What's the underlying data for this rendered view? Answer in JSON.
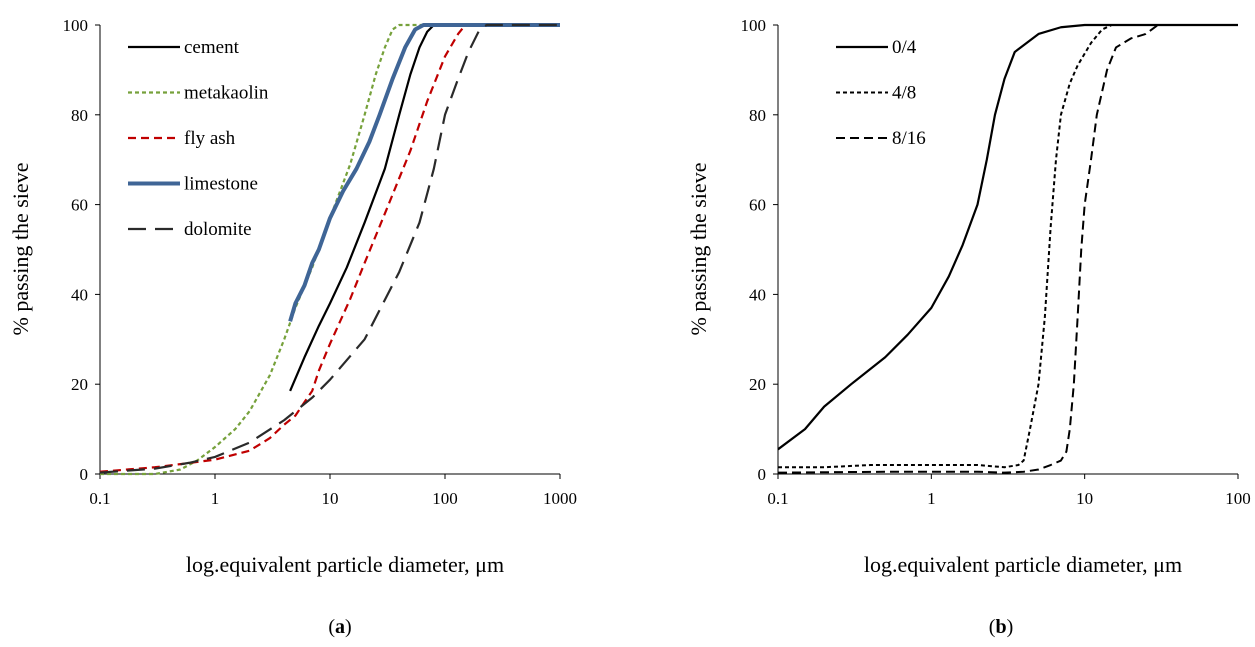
{
  "chart_data": [
    {
      "type": "line",
      "x_scale": "log",
      "xlabel": "log.equivalent particle diameter, μm",
      "ylabel": "% passing the sieve",
      "xlim": [
        0.1,
        1000
      ],
      "ylim": [
        0,
        100
      ],
      "x_ticks": [
        "0.1",
        "1",
        "10",
        "100",
        "1000"
      ],
      "y_ticks": [
        "0",
        "20",
        "40",
        "60",
        "80",
        "100"
      ],
      "legend": "top-left",
      "grid": false,
      "panel_label": [
        "(",
        "a",
        ")"
      ],
      "series": [
        {
          "name": "cement",
          "color": "#000000",
          "dash": "solid",
          "width": 2.2,
          "points": [
            [
              4.5,
              18.5
            ],
            [
              6,
              26
            ],
            [
              8,
              33
            ],
            [
              10,
              38
            ],
            [
              14,
              46
            ],
            [
              20,
              56
            ],
            [
              30,
              68
            ],
            [
              40,
              80
            ],
            [
              50,
              89
            ],
            [
              60,
              95
            ],
            [
              70,
              98.5
            ],
            [
              80,
              100
            ],
            [
              1000,
              100
            ]
          ]
        },
        {
          "name": "metakaolin",
          "color": "#76a13b",
          "dash": "4 3",
          "width": 2.2,
          "points": [
            [
              0.1,
              0
            ],
            [
              0.3,
              0
            ],
            [
              0.5,
              1
            ],
            [
              0.7,
              3
            ],
            [
              1,
              6
            ],
            [
              1.5,
              10
            ],
            [
              2,
              14
            ],
            [
              3,
              22
            ],
            [
              4,
              30
            ],
            [
              5,
              37
            ],
            [
              7,
              46
            ],
            [
              10,
              57
            ],
            [
              15,
              69
            ],
            [
              20,
              80
            ],
            [
              25,
              89
            ],
            [
              30,
              95
            ],
            [
              35,
              99
            ],
            [
              40,
              100
            ],
            [
              1000,
              100
            ]
          ]
        },
        {
          "name": "fly ash",
          "color": "#c00000",
          "dash": "8 5",
          "width": 2.2,
          "points": [
            [
              0.1,
              0.5
            ],
            [
              0.3,
              1.5
            ],
            [
              0.5,
              2.2
            ],
            [
              1,
              3.2
            ],
            [
              2,
              5.2
            ],
            [
              3,
              8
            ],
            [
              4,
              11
            ],
            [
              5,
              13
            ],
            [
              6,
              16
            ],
            [
              7,
              18.5
            ],
            [
              8,
              23
            ],
            [
              10,
              29
            ],
            [
              15,
              39
            ],
            [
              20,
              47
            ],
            [
              30,
              58
            ],
            [
              50,
              72
            ],
            [
              70,
              83
            ],
            [
              100,
              93
            ],
            [
              130,
              98
            ],
            [
              150,
              100
            ],
            [
              1000,
              100
            ]
          ]
        },
        {
          "name": "limestone",
          "color": "#3f6596",
          "dash": "solid",
          "width": 4,
          "points": [
            [
              4.5,
              34
            ],
            [
              5,
              38
            ],
            [
              6,
              42
            ],
            [
              7,
              47
            ],
            [
              8,
              50
            ],
            [
              10,
              57
            ],
            [
              13,
              63
            ],
            [
              17,
              68
            ],
            [
              22,
              74
            ],
            [
              27,
              80
            ],
            [
              35,
              88
            ],
            [
              45,
              95
            ],
            [
              55,
              99
            ],
            [
              65,
              100
            ],
            [
              1000,
              100
            ]
          ]
        },
        {
          "name": "dolomite",
          "color": "#2a2a2a",
          "dash": "18 9",
          "width": 2.2,
          "points": [
            [
              0.1,
              0.3
            ],
            [
              0.3,
              1.2
            ],
            [
              0.6,
              2.5
            ],
            [
              1,
              3.8
            ],
            [
              2,
              7
            ],
            [
              4,
              12
            ],
            [
              7,
              17
            ],
            [
              10,
              21
            ],
            [
              20,
              30
            ],
            [
              40,
              45
            ],
            [
              60,
              56
            ],
            [
              80,
              68
            ],
            [
              100,
              80
            ],
            [
              130,
              88
            ],
            [
              160,
              94
            ],
            [
              200,
              99
            ],
            [
              230,
              100
            ],
            [
              1000,
              100
            ]
          ]
        }
      ]
    },
    {
      "type": "line",
      "x_scale": "log",
      "xlabel": "log.equivalent particle diameter, μm",
      "ylabel": "% passing the sieve",
      "xlim": [
        0.1,
        100
      ],
      "ylim": [
        0,
        100
      ],
      "x_ticks": [
        "0.1",
        "1",
        "10",
        "100"
      ],
      "y_ticks": [
        "0",
        "20",
        "40",
        "60",
        "80",
        "100"
      ],
      "legend": "top-left",
      "grid": false,
      "panel_label": [
        "(",
        "b",
        ")"
      ],
      "series": [
        {
          "name": "0/4",
          "color": "#000000",
          "dash": "solid",
          "width": 2.2,
          "points": [
            [
              0.1,
              5.5
            ],
            [
              0.15,
              10
            ],
            [
              0.2,
              15
            ],
            [
              0.3,
              20
            ],
            [
              0.5,
              26
            ],
            [
              0.7,
              31
            ],
            [
              1,
              37
            ],
            [
              1.3,
              44
            ],
            [
              1.6,
              51
            ],
            [
              2,
              60
            ],
            [
              2.3,
              70
            ],
            [
              2.6,
              80
            ],
            [
              3,
              88
            ],
            [
              3.5,
              94
            ],
            [
              5,
              98
            ],
            [
              7,
              99.5
            ],
            [
              10,
              100
            ],
            [
              100,
              100
            ]
          ]
        },
        {
          "name": "4/8",
          "color": "#000000",
          "dash": "4 3",
          "width": 2,
          "points": [
            [
              0.1,
              1.5
            ],
            [
              0.2,
              1.5
            ],
            [
              0.4,
              2
            ],
            [
              1,
              2
            ],
            [
              2,
              2
            ],
            [
              3,
              1.5
            ],
            [
              3.7,
              2
            ],
            [
              4,
              3
            ],
            [
              4.4,
              10
            ],
            [
              5,
              20
            ],
            [
              5.5,
              35
            ],
            [
              6,
              55
            ],
            [
              6.5,
              70
            ],
            [
              7,
              80
            ],
            [
              8,
              87
            ],
            [
              9,
              91
            ],
            [
              11,
              96
            ],
            [
              13,
              99
            ],
            [
              15,
              100
            ],
            [
              100,
              100
            ]
          ]
        },
        {
          "name": "8/16",
          "color": "#000000",
          "dash": "9 5",
          "width": 2,
          "points": [
            [
              0.1,
              0.3
            ],
            [
              0.5,
              0.5
            ],
            [
              1,
              0.5
            ],
            [
              2,
              0.5
            ],
            [
              3,
              0.3
            ],
            [
              4,
              0.5
            ],
            [
              5,
              1
            ],
            [
              6,
              2
            ],
            [
              7,
              3
            ],
            [
              7.6,
              5
            ],
            [
              8,
              10
            ],
            [
              8.5,
              20
            ],
            [
              9,
              35
            ],
            [
              9.5,
              50
            ],
            [
              10,
              60
            ],
            [
              11,
              70
            ],
            [
              12,
              80
            ],
            [
              14,
              90
            ],
            [
              16,
              95
            ],
            [
              20,
              97
            ],
            [
              25,
              98
            ],
            [
              30,
              100
            ],
            [
              100,
              100
            ]
          ]
        }
      ]
    }
  ]
}
